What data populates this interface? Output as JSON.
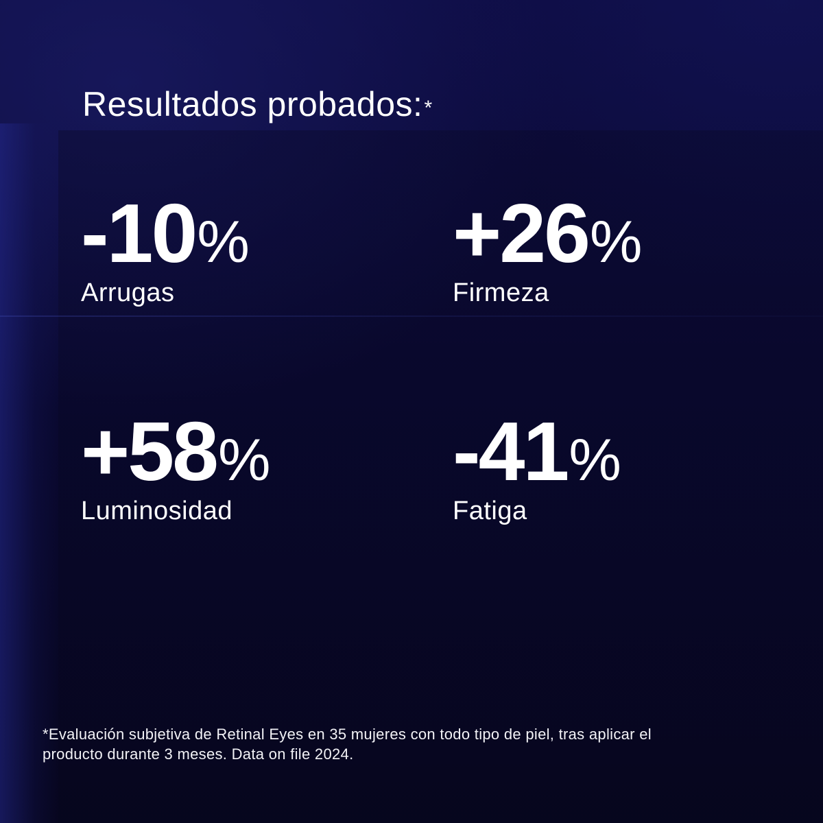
{
  "heading": {
    "text": "Resultados probados:",
    "asterisk": "*"
  },
  "stats": [
    {
      "value": "-10",
      "unit": "%",
      "label": "Arrugas"
    },
    {
      "value": "+26",
      "unit": "%",
      "label": "Firmeza"
    },
    {
      "value": "+58",
      "unit": "%",
      "label": "Luminosidad"
    },
    {
      "value": "-41",
      "unit": "%",
      "label": "Fatiga"
    }
  ],
  "footnote": {
    "line1": "*Evaluación subjetiva de Retinal Eyes en 35 mujeres con todo tipo de piel, tras aplicar el",
    "line2": "producto durante 3 meses. Data on file 2024."
  },
  "colors": {
    "background_top": "#0e0d45",
    "background_bottom": "#07061f",
    "text": "#ffffff"
  }
}
